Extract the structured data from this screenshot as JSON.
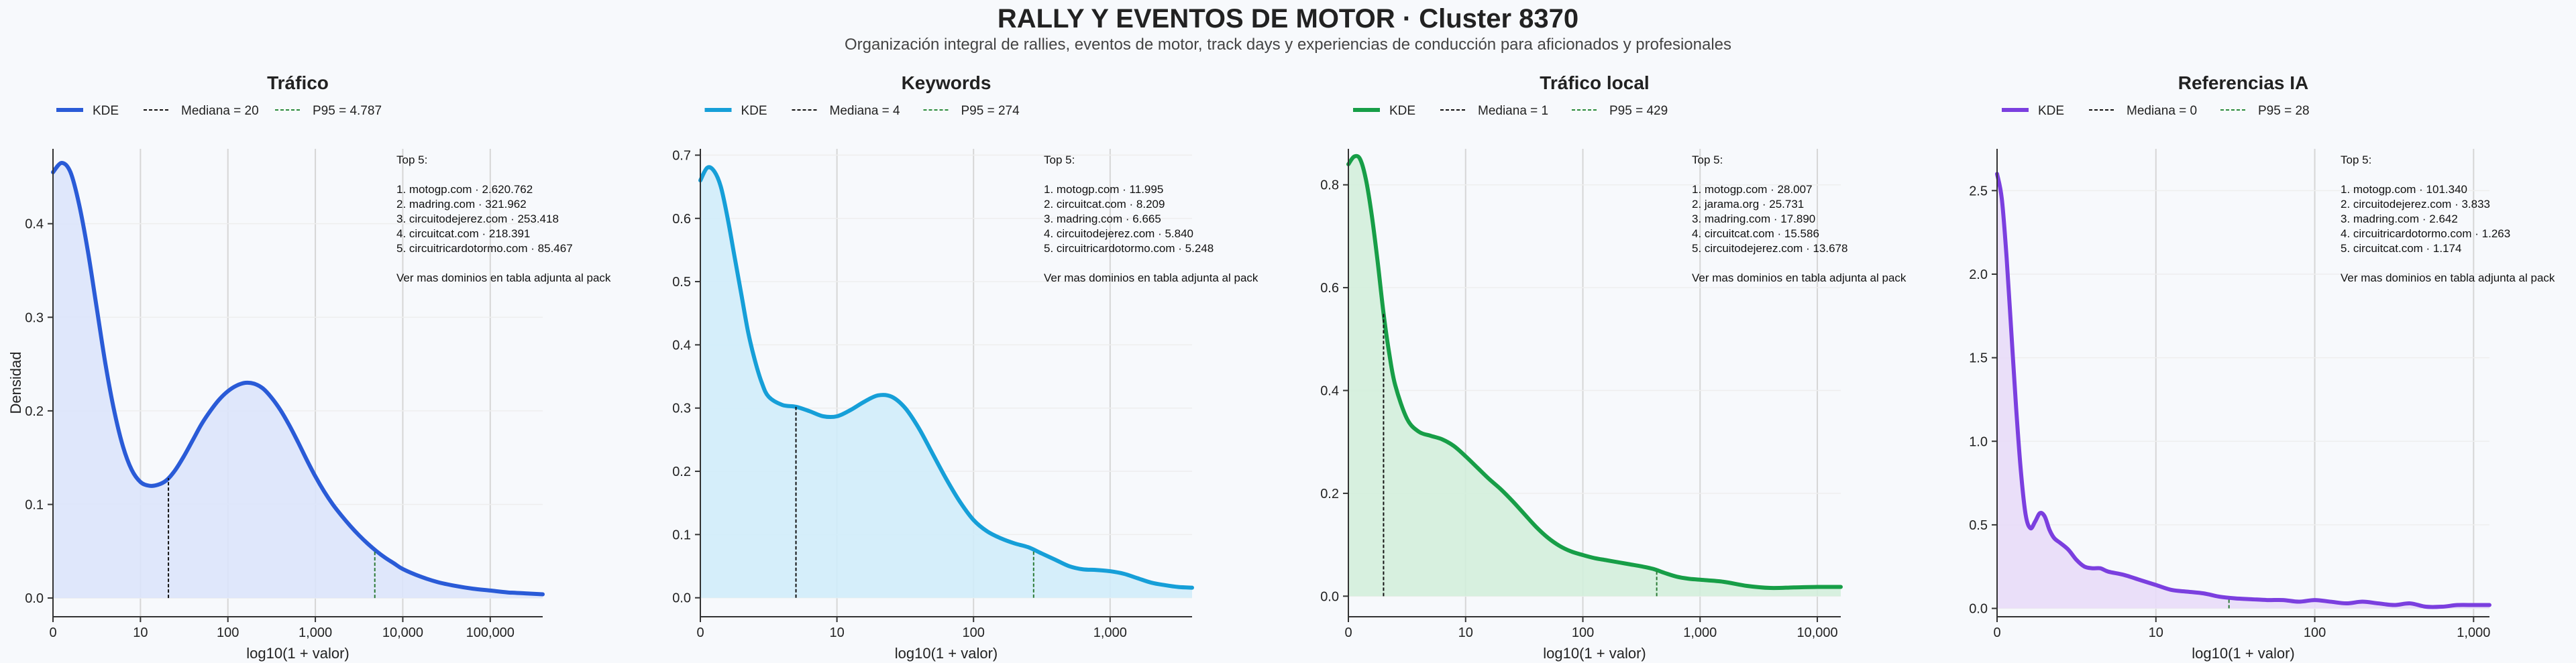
{
  "title": "RALLY Y EVENTOS DE MOTOR · Cluster 8370",
  "subtitle": "Organización integral de rallies, eventos de motor, track days y experiencias de conducción para aficionados y profesionales",
  "chart_data": [
    {
      "type": "area",
      "title": "Tráfico",
      "color": "#2a5bd7",
      "fill": "#dbe4fb",
      "ylabel": "Densidad",
      "xlabel": "log10(1 + valor)",
      "xlim": [
        0,
        5.6
      ],
      "ylim": [
        -0.02,
        0.48
      ],
      "xticks": [
        0,
        1,
        2,
        3,
        4,
        5
      ],
      "xtick_labels": [
        "0",
        "10",
        "100",
        "1,000",
        "10,000",
        "100,000"
      ],
      "yticks": [
        0.0,
        0.1,
        0.2,
        0.3,
        0.4
      ],
      "ytick_labels": [
        "0.0",
        "0.1",
        "0.2",
        "0.3",
        "0.4"
      ],
      "legend": [
        "KDE",
        "Mediana = 20",
        "P95 = 4.787"
      ],
      "median_x": 1.32,
      "p95_x": 3.68,
      "x": [
        0,
        0.1,
        0.2,
        0.3,
        0.4,
        0.5,
        0.6,
        0.7,
        0.8,
        0.9,
        1.0,
        1.1,
        1.2,
        1.3,
        1.4,
        1.5,
        1.6,
        1.7,
        1.8,
        1.9,
        2.0,
        2.1,
        2.2,
        2.3,
        2.4,
        2.5,
        2.6,
        2.7,
        2.8,
        2.9,
        3.0,
        3.1,
        3.2,
        3.3,
        3.4,
        3.5,
        3.6,
        3.7,
        3.8,
        3.9,
        4.0,
        4.2,
        4.4,
        4.6,
        4.8,
        5.0,
        5.2,
        5.4,
        5.6
      ],
      "y": [
        0.455,
        0.465,
        0.455,
        0.42,
        0.37,
        0.31,
        0.25,
        0.2,
        0.162,
        0.137,
        0.124,
        0.12,
        0.121,
        0.126,
        0.137,
        0.152,
        0.169,
        0.186,
        0.2,
        0.212,
        0.221,
        0.227,
        0.23,
        0.229,
        0.224,
        0.214,
        0.201,
        0.185,
        0.167,
        0.148,
        0.13,
        0.114,
        0.1,
        0.088,
        0.077,
        0.067,
        0.058,
        0.05,
        0.043,
        0.037,
        0.031,
        0.023,
        0.017,
        0.013,
        0.01,
        0.008,
        0.006,
        0.005,
        0.004
      ],
      "annotation": [
        "Top 5:",
        "",
        "1. motogp.com · 2.620.762",
        "2. madring.com · 321.962",
        "3. circuitodejerez.com · 253.418",
        "4. circuitcat.com · 218.391",
        "5. circuitricardotormo.com · 85.467",
        "",
        "Ver mas dominios en tabla adjunta al pack"
      ]
    },
    {
      "type": "area",
      "title": "Keywords",
      "color": "#169fd8",
      "fill": "#d0ecfa",
      "ylabel": "",
      "xlabel": "log10(1 + valor)",
      "xlim": [
        0,
        3.6
      ],
      "ylim": [
        -0.03,
        0.71
      ],
      "xticks": [
        0,
        1,
        2,
        3
      ],
      "xtick_labels": [
        "0",
        "10",
        "100",
        "1,000"
      ],
      "yticks": [
        0.0,
        0.1,
        0.2,
        0.3,
        0.4,
        0.5,
        0.6,
        0.7
      ],
      "ytick_labels": [
        "0.0",
        "0.1",
        "0.2",
        "0.3",
        "0.4",
        "0.5",
        "0.6",
        "0.7"
      ],
      "legend": [
        "KDE",
        "Mediana = 4",
        "P95 = 274"
      ],
      "median_x": 0.7,
      "p95_x": 2.44,
      "x": [
        0,
        0.05,
        0.1,
        0.15,
        0.2,
        0.25,
        0.3,
        0.35,
        0.4,
        0.45,
        0.5,
        0.6,
        0.7,
        0.8,
        0.9,
        1.0,
        1.1,
        1.2,
        1.3,
        1.4,
        1.5,
        1.6,
        1.7,
        1.8,
        1.9,
        2.0,
        2.1,
        2.2,
        2.3,
        2.4,
        2.5,
        2.6,
        2.7,
        2.8,
        2.9,
        3.0,
        3.1,
        3.2,
        3.3,
        3.4,
        3.5,
        3.6
      ],
      "y": [
        0.66,
        0.68,
        0.675,
        0.65,
        0.6,
        0.54,
        0.48,
        0.42,
        0.375,
        0.34,
        0.318,
        0.305,
        0.302,
        0.295,
        0.287,
        0.287,
        0.297,
        0.31,
        0.32,
        0.318,
        0.3,
        0.268,
        0.228,
        0.188,
        0.152,
        0.123,
        0.105,
        0.094,
        0.086,
        0.08,
        0.07,
        0.06,
        0.05,
        0.045,
        0.044,
        0.042,
        0.038,
        0.031,
        0.024,
        0.02,
        0.017,
        0.016
      ],
      "annotation": [
        "Top 5:",
        "",
        "1. motogp.com · 11.995",
        "2. circuitcat.com · 8.209",
        "3. madring.com · 6.665",
        "4. circuitodejerez.com · 5.840",
        "5. circuitricardotormo.com · 5.248",
        "",
        "Ver mas dominios en tabla adjunta al pack"
      ]
    },
    {
      "type": "area",
      "title": "Tráfico local",
      "color": "#179e47",
      "fill": "#d3eedb",
      "ylabel": "",
      "xlabel": "log10(1 + valor)",
      "xlim": [
        0,
        4.2
      ],
      "ylim": [
        -0.04,
        0.87
      ],
      "xticks": [
        0,
        1,
        2,
        3,
        4
      ],
      "xtick_labels": [
        "0",
        "10",
        "100",
        "1,000",
        "10,000"
      ],
      "yticks": [
        0.0,
        0.2,
        0.4,
        0.6,
        0.8
      ],
      "ytick_labels": [
        "0.0",
        "0.2",
        "0.4",
        "0.6",
        "0.8"
      ],
      "legend": [
        "KDE",
        "Mediana = 1",
        "P95 = 429"
      ],
      "median_x": 0.3,
      "p95_x": 2.63,
      "x": [
        0,
        0.05,
        0.1,
        0.15,
        0.2,
        0.25,
        0.3,
        0.35,
        0.4,
        0.5,
        0.6,
        0.7,
        0.8,
        0.9,
        1.0,
        1.1,
        1.2,
        1.3,
        1.4,
        1.5,
        1.6,
        1.7,
        1.8,
        1.9,
        2.0,
        2.1,
        2.2,
        2.3,
        2.4,
        2.5,
        2.6,
        2.7,
        2.8,
        2.9,
        3.0,
        3.2,
        3.4,
        3.6,
        3.8,
        4.0,
        4.2
      ],
      "y": [
        0.84,
        0.855,
        0.85,
        0.81,
        0.74,
        0.65,
        0.55,
        0.47,
        0.41,
        0.345,
        0.32,
        0.312,
        0.305,
        0.292,
        0.272,
        0.25,
        0.228,
        0.208,
        0.185,
        0.16,
        0.135,
        0.114,
        0.098,
        0.087,
        0.08,
        0.074,
        0.07,
        0.066,
        0.062,
        0.058,
        0.053,
        0.045,
        0.038,
        0.034,
        0.032,
        0.028,
        0.02,
        0.016,
        0.017,
        0.018,
        0.018
      ],
      "annotation": [
        "Top 5:",
        "",
        "1. motogp.com · 28.007",
        "2. jarama.org · 25.731",
        "3. madring.com · 17.890",
        "4. circuitcat.com · 15.586",
        "5. circuitodejerez.com · 13.678",
        "",
        "Ver mas dominios en tabla adjunta al pack"
      ]
    },
    {
      "type": "area",
      "title": "Referencias IA",
      "color": "#7b3fdf",
      "fill": "#e8dcf8",
      "ylabel": "",
      "xlabel": "log10(1 + valor)",
      "xlim": [
        0,
        3.1
      ],
      "ylim": [
        -0.05,
        2.75
      ],
      "xticks": [
        0,
        1,
        2,
        3
      ],
      "xtick_labels": [
        "0",
        "10",
        "100",
        "1,000"
      ],
      "yticks": [
        0.0,
        0.5,
        1.0,
        1.5,
        2.0,
        2.5
      ],
      "ytick_labels": [
        "0.0",
        "0.5",
        "1.0",
        "1.5",
        "2.0",
        "2.5"
      ],
      "legend": [
        "KDE",
        "Mediana = 0",
        "P95 = 28"
      ],
      "median_x": 0.0,
      "p95_x": 1.46,
      "x": [
        0,
        0.03,
        0.06,
        0.09,
        0.12,
        0.15,
        0.18,
        0.21,
        0.24,
        0.27,
        0.3,
        0.33,
        0.36,
        0.4,
        0.45,
        0.5,
        0.55,
        0.6,
        0.65,
        0.7,
        0.8,
        0.9,
        1.0,
        1.1,
        1.2,
        1.3,
        1.4,
        1.5,
        1.6,
        1.7,
        1.8,
        1.9,
        2.0,
        2.1,
        2.2,
        2.3,
        2.4,
        2.5,
        2.6,
        2.7,
        2.8,
        2.9,
        3.0,
        3.1
      ],
      "y": [
        2.6,
        2.45,
        2.1,
        1.65,
        1.2,
        0.82,
        0.56,
        0.48,
        0.52,
        0.57,
        0.55,
        0.47,
        0.42,
        0.39,
        0.35,
        0.29,
        0.25,
        0.24,
        0.24,
        0.22,
        0.2,
        0.17,
        0.14,
        0.11,
        0.1,
        0.09,
        0.07,
        0.06,
        0.055,
        0.05,
        0.05,
        0.04,
        0.05,
        0.04,
        0.03,
        0.04,
        0.03,
        0.02,
        0.03,
        0.01,
        0.01,
        0.02,
        0.02,
        0.02
      ],
      "annotation": [
        "Top 5:",
        "",
        "1. motogp.com · 101.340",
        "2. circuitodejerez.com · 3.833",
        "3. madring.com · 2.642",
        "4. circuitricardotormo.com · 1.263",
        "5. circuitcat.com · 1.174",
        "",
        "Ver mas dominios en tabla adjunta al pack"
      ]
    }
  ]
}
